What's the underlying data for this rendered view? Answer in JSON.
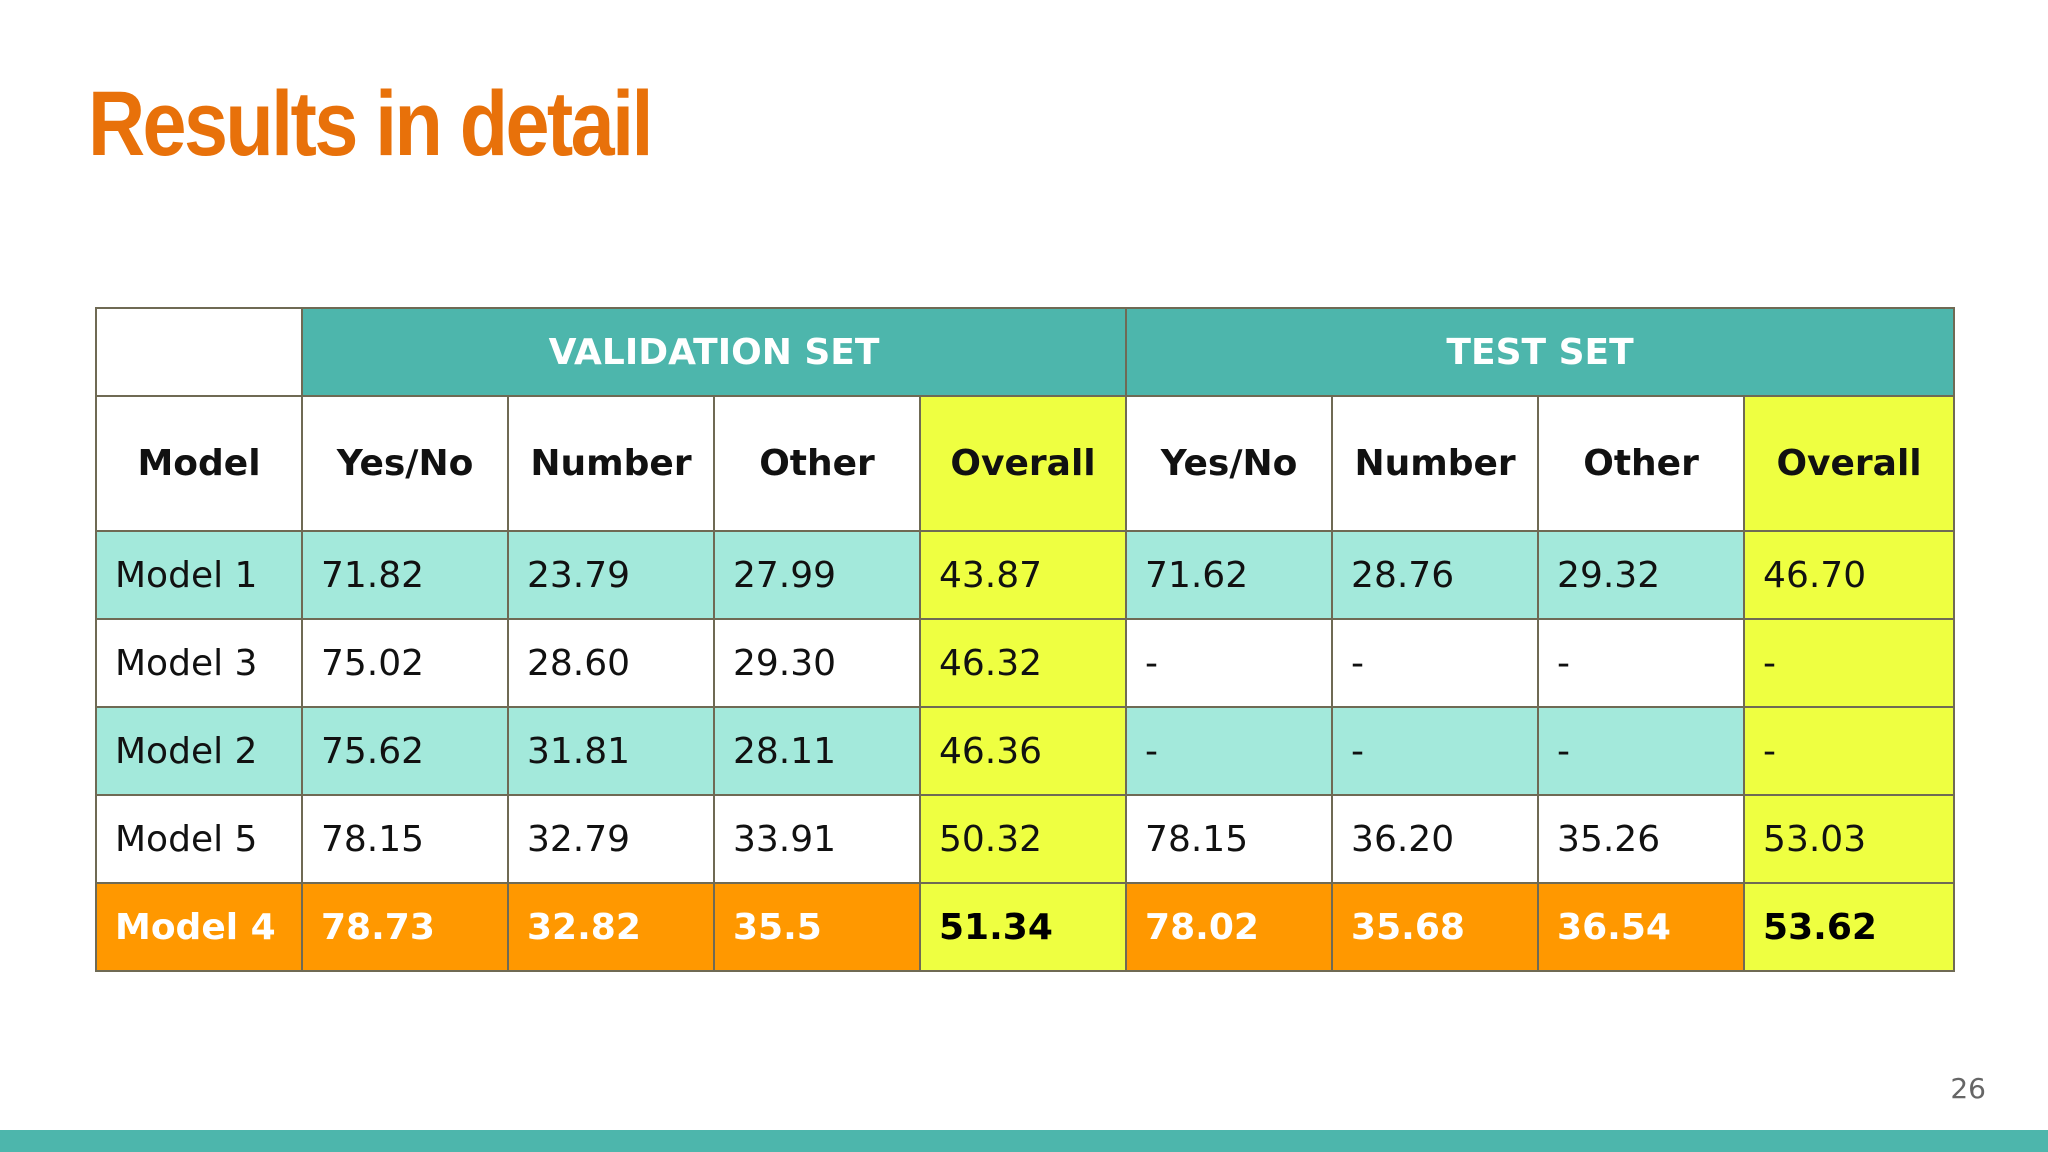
{
  "slide": {
    "title": "Results in detail",
    "page_number": "26"
  },
  "table": {
    "group_headers": [
      "VALIDATION SET",
      "TEST SET"
    ],
    "column_headers": [
      "Model",
      "Yes/No",
      "Number",
      "Other",
      "Overall",
      "Yes/No",
      "Number",
      "Other",
      "Overall"
    ],
    "rows": [
      {
        "model": "Model 1",
        "val_yesno": "71.82",
        "val_number": "23.79",
        "val_other": "27.99",
        "val_overall": "43.87",
        "test_yesno": "71.62",
        "test_number": "28.76",
        "test_other": "29.32",
        "test_overall": "46.70"
      },
      {
        "model": "Model 3",
        "val_yesno": "75.02",
        "val_number": "28.60",
        "val_other": "29.30",
        "val_overall": "46.32",
        "test_yesno": "-",
        "test_number": "-",
        "test_other": "-",
        "test_overall": "-"
      },
      {
        "model": "Model 2",
        "val_yesno": "75.62",
        "val_number": "31.81",
        "val_other": "28.11",
        "val_overall": "46.36",
        "test_yesno": "-",
        "test_number": "-",
        "test_other": "-",
        "test_overall": "-"
      },
      {
        "model": "Model 5",
        "val_yesno": "78.15",
        "val_number": "32.79",
        "val_other": "33.91",
        "val_overall": "50.32",
        "test_yesno": "78.15",
        "test_number": "36.20",
        "test_other": "35.26",
        "test_overall": "53.03"
      },
      {
        "model": "Model 4",
        "val_yesno": "78.73",
        "val_number": "32.82",
        "val_other": "35.5",
        "val_overall": "51.34",
        "test_yesno": "78.02",
        "test_number": "35.68",
        "test_other": "36.54",
        "test_overall": "53.62"
      }
    ]
  },
  "colors": {
    "title": "#e8710a",
    "header_teal": "#4db6ac",
    "row_teal": "#a3e9db",
    "overall_yellow": "#eeff41",
    "best_orange": "#ff9800",
    "border": "#6f6a54"
  }
}
